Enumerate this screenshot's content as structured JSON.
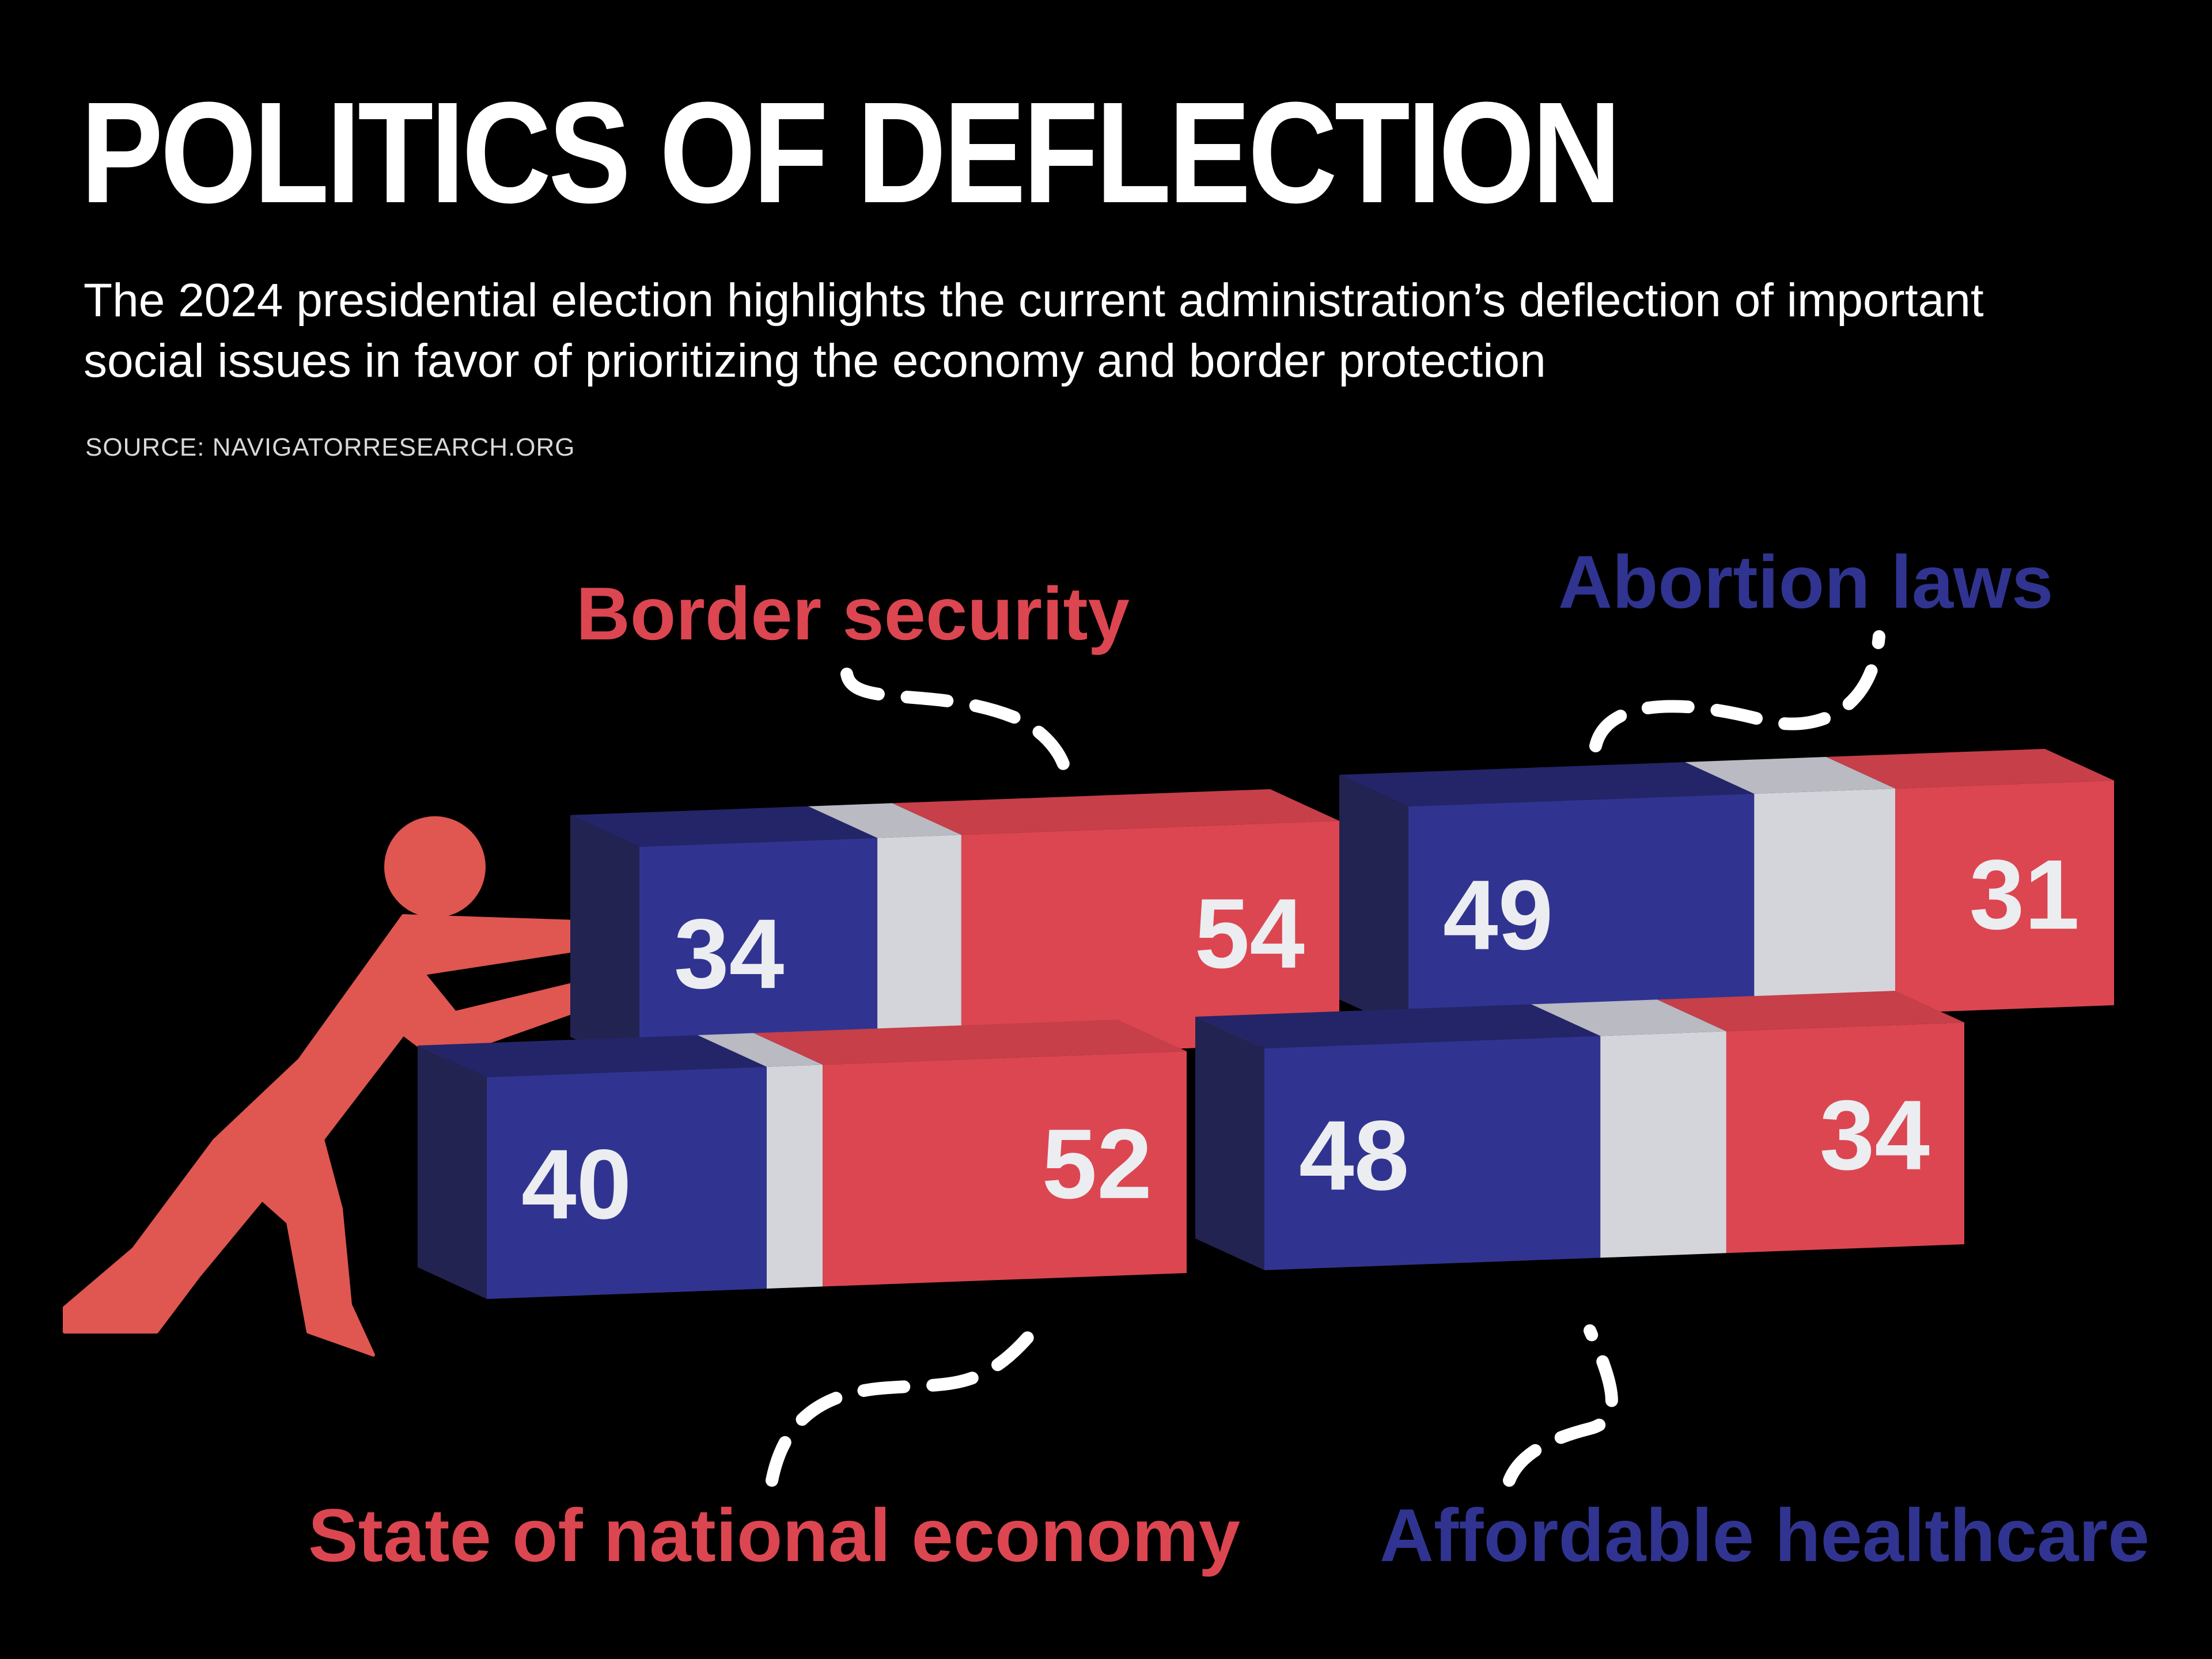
{
  "title": "POLITICS OF DEFLECTION",
  "subtitle": "The 2024 presidential election highlights the current administration’s deflection of important social issues in favor of prioritizing the economy and border protection",
  "source": "SOURCE: NAVIGATORRESEARCH.ORG",
  "colors": {
    "background": "#000000",
    "blue": "#303490",
    "red": "#dc4651",
    "neutral": "#d4d5db",
    "figure": "#df5750"
  },
  "icons": [
    "pushing-figure-icon"
  ],
  "chart_data": {
    "type": "bar",
    "stacked": true,
    "categories": [
      "Border security",
      "Abortion laws",
      "State of national economy",
      "Affordable healthcare"
    ],
    "series": [
      {
        "values": [
          34,
          49,
          40,
          48
        ],
        "color": "#303490"
      },
      {
        "values": [
          54,
          31,
          52,
          34
        ],
        "color": "#dc4651"
      }
    ],
    "title": "POLITICS OF DEFLECTION",
    "xlabel": "",
    "ylabel": "",
    "grid": false,
    "legend": "none"
  }
}
